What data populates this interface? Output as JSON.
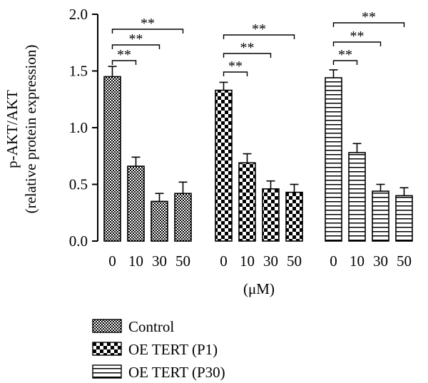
{
  "chart_data": {
    "type": "bar",
    "ylabel_line1": "p-AKT/AKT",
    "ylabel_line2": "(relative protein expression)",
    "xlabel": "(μM)",
    "ylim": [
      0,
      2.0
    ],
    "yticks": [
      "0.0",
      "0.5",
      "1.0",
      "1.5",
      "2.0"
    ],
    "categories": [
      "0",
      "10",
      "30",
      "50"
    ],
    "series": [
      {
        "name": "Control",
        "pattern": "checker-fine",
        "values": [
          1.45,
          0.66,
          0.35,
          0.42
        ],
        "errors": [
          0.09,
          0.08,
          0.07,
          0.1
        ]
      },
      {
        "name": "OE TERT (P1)",
        "pattern": "checker-coarse",
        "values": [
          1.33,
          0.69,
          0.46,
          0.43
        ],
        "errors": [
          0.07,
          0.08,
          0.07,
          0.07
        ]
      },
      {
        "name": "OE TERT (P30)",
        "pattern": "horizontal-stripes",
        "values": [
          1.44,
          0.78,
          0.44,
          0.4
        ],
        "errors": [
          0.07,
          0.08,
          0.06,
          0.07
        ]
      }
    ],
    "significance_label": "**",
    "significance": [
      {
        "series": 0,
        "from": 0,
        "to": 1,
        "label": "**"
      },
      {
        "series": 0,
        "from": 0,
        "to": 2,
        "label": "**"
      },
      {
        "series": 0,
        "from": 0,
        "to": 3,
        "label": "**"
      },
      {
        "series": 1,
        "from": 0,
        "to": 1,
        "label": "**"
      },
      {
        "series": 1,
        "from": 0,
        "to": 2,
        "label": "**"
      },
      {
        "series": 1,
        "from": 0,
        "to": 3,
        "label": "**"
      },
      {
        "series": 2,
        "from": 0,
        "to": 1,
        "label": "**"
      },
      {
        "series": 2,
        "from": 0,
        "to": 2,
        "label": "**"
      },
      {
        "series": 2,
        "from": 0,
        "to": 3,
        "label": "**"
      }
    ],
    "legend_placement": "bottom",
    "grid": false,
    "colors": {
      "ink": "#000000",
      "background": "#ffffff"
    }
  }
}
